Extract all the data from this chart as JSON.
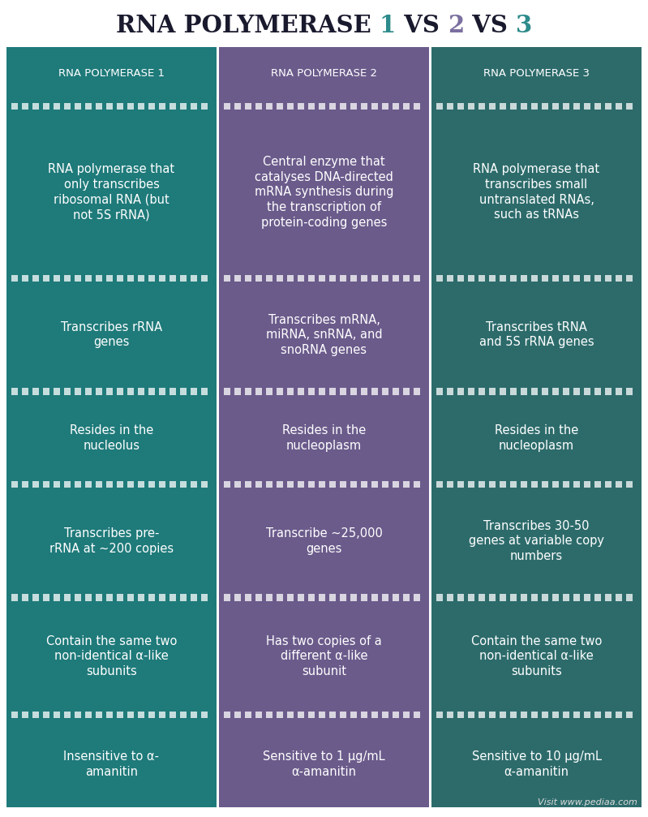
{
  "title_parts": [
    {
      "text": "RNA POLYMERASE ",
      "color": "#1a1a2e"
    },
    {
      "text": "1",
      "color": "#2e8b8b"
    },
    {
      "text": " VS ",
      "color": "#1a1a2e"
    },
    {
      "text": "2",
      "color": "#7b6fa0"
    },
    {
      "text": " VS ",
      "color": "#1a1a2e"
    },
    {
      "text": "3",
      "color": "#2e8b8b"
    }
  ],
  "col1_color": "#1f7a7a",
  "col2_color": "#6b5b8b",
  "col3_color": "#2d6b6b",
  "text_color": "#ffffff",
  "bg_color": "#ffffff",
  "headers": [
    "RNA POLYMERASE 1",
    "RNA POLYMERASE 2",
    "RNA POLYMERASE 3"
  ],
  "rows": [
    [
      "RNA polymerase that\nonly transcribes\nribosomal RNA (but\nnot 5S rRNA)",
      "Central enzyme that\ncatalyses DNA-directed\nmRNA synthesis during\nthe transcription of\nprotein-coding genes",
      "RNA polymerase that\ntranscribes small\nuntranslated RNAs,\nsuch as tRNAs"
    ],
    [
      "Transcribes rRNA\ngenes",
      "Transcribes mRNA,\nmiRNA, snRNA, and\nsnoRNA genes",
      "Transcribes tRNA\nand 5S rRNA genes"
    ],
    [
      "Resides in the\nnucleolus",
      "Resides in the\nnucleoplasm",
      "Resides in the\nnucleoplasm"
    ],
    [
      "Transcribes pre-\nrRNA at ~200 copies",
      "Transcribe ~25,000\ngenes",
      "Transcribes 30-50\ngenes at variable copy\nnumbers"
    ],
    [
      "Contain the same two\nnon-identical α-like\nsubunits",
      "Has two copies of a\ndifferent α-like\nsubunit",
      "Contain the same two\nnon-identical α-like\nsubunits"
    ],
    [
      "Insensitive to α-\namanitin",
      "Sensitive to 1 μg/mL\nα-amanitin",
      "Sensitive to 10 μg/mL\nα-amanitin"
    ]
  ],
  "footer_text": "Visit www.pediaa.com",
  "title_fontsize": 21,
  "header_fontsize": 9.5,
  "cell_fontsize": 10.5
}
